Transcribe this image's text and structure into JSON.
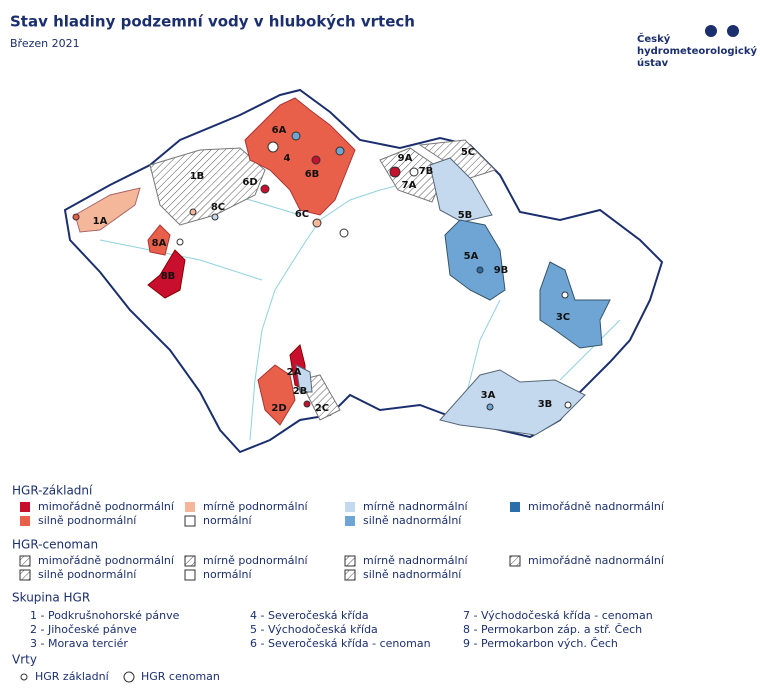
{
  "header": {
    "title": "Stav hladiny podzemní vody v hlubokých vrtech",
    "subtitle": "Březen 2021",
    "logo": [
      "Český",
      "hydrometeorologický",
      "ústav"
    ]
  },
  "map": {
    "labels": [
      "6A",
      "4",
      "6B",
      "6D",
      "6C",
      "1B",
      "8C",
      "1A",
      "8A",
      "8B",
      "9A",
      "7B",
      "5C",
      "7A",
      "5B",
      "5A",
      "9B",
      "3C",
      "2A",
      "2B",
      "2D",
      "2C",
      "3A",
      "3B"
    ]
  },
  "legend": {
    "basic": {
      "title": "HGR-základní",
      "items": [
        "mimořádně podnormální",
        "mírně podnormální",
        "mírně nadnormální",
        "mimořádně nadnormální",
        "silně podnormální",
        "normální",
        "silně nadnormální"
      ]
    },
    "cenoman": {
      "title": "HGR-cenoman",
      "items": [
        "mimořádně podnormální",
        "mírně podnormální",
        "mírně nadnormální",
        "mimořádně nadnormální",
        "silně podnormální",
        "normální",
        "silně nadnormální"
      ]
    },
    "groups": {
      "title": "Skupina HGR",
      "items": [
        "1 - Podkrušnohorské pánve",
        "2 - Jihočeské pánve",
        "3 - Morava terciér",
        "4 - Severočeská křída",
        "5 - Východočeská křída",
        "6 - Severočeská křída - cenoman",
        "7 - Východočeská křída - cenoman",
        "8 - Permokarbon záp. a stř. Čech",
        "9 - Permokarbon vých. Čech"
      ]
    },
    "wells": {
      "title": "Vrty",
      "items": [
        "HGR základní",
        "HGR cenoman"
      ]
    }
  }
}
